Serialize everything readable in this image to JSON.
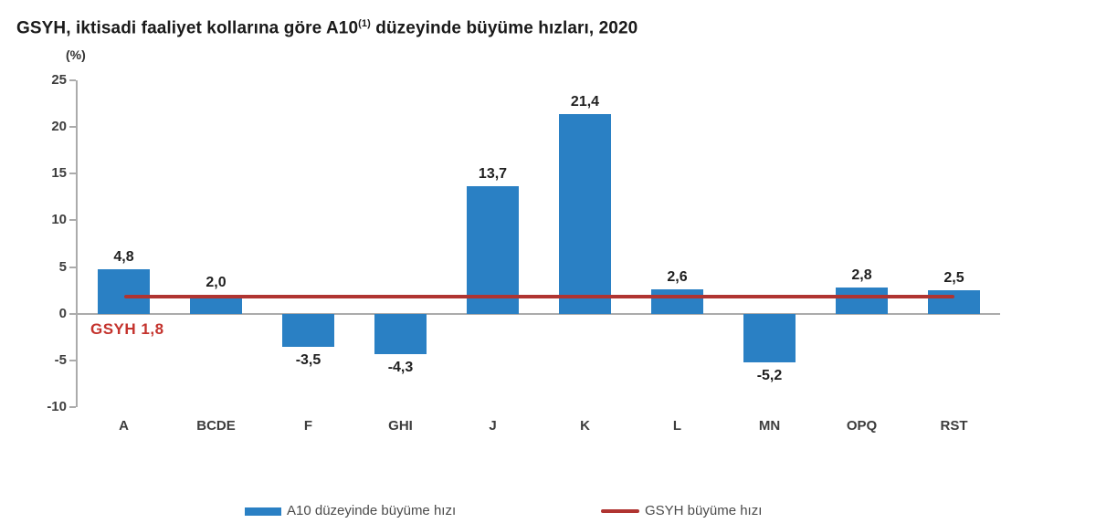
{
  "title": {
    "prefix": "GSYH, iktisadi faaliyet kollarına göre A10",
    "superscript": "(1)",
    "suffix": " düzeyinde büyüme hızları, 2020"
  },
  "chart_data": {
    "type": "bar",
    "title": "GSYH, iktisadi faaliyet kollarına göre A10(1) düzeyinde büyüme hızları, 2020",
    "unit_label": "(%)",
    "categories": [
      "A",
      "BCDE",
      "F",
      "GHI",
      "J",
      "K",
      "L",
      "MN",
      "OPQ",
      "RST"
    ],
    "series": [
      {
        "name": "A10 düzeyinde büyüme hızı",
        "type": "bar",
        "color": "#2a80c4",
        "values": [
          4.8,
          2.0,
          -3.5,
          -4.3,
          13.7,
          21.4,
          2.6,
          -5.2,
          2.8,
          2.5
        ],
        "labels": [
          "4,8",
          "2,0",
          "-3,5",
          "-4,3",
          "13,7",
          "21,4",
          "2,6",
          "-5,2",
          "2,8",
          "2,5"
        ]
      },
      {
        "name": "GSYH büyüme hızı",
        "type": "line",
        "color": "#b03431",
        "value": 1.8
      }
    ],
    "annotation": {
      "text": "GSYH 1,8",
      "color": "#c4332d"
    },
    "y_axis": {
      "ticks": [
        25,
        20,
        15,
        10,
        5,
        0,
        -5,
        -10
      ],
      "min": -10,
      "max": 25,
      "grid": false
    },
    "axis_color": "#ababab",
    "legend": {
      "position": "bottom",
      "entries": [
        {
          "label": "A10 düzeyinde büyüme hızı",
          "swatch": "bar",
          "color": "#2a80c4"
        },
        {
          "label": "GSYH büyüme hızı",
          "swatch": "line",
          "color": "#b03431"
        }
      ]
    }
  }
}
